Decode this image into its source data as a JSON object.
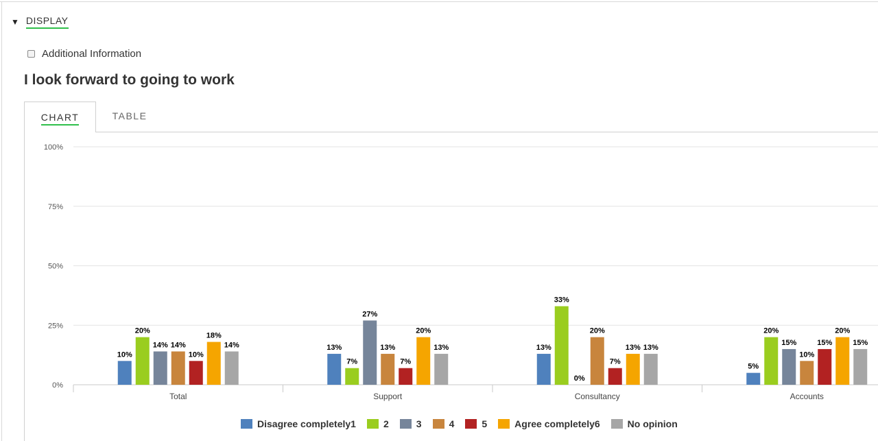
{
  "display": {
    "label": "DISPLAY",
    "caret": "▼"
  },
  "additional_info": {
    "label": "Additional Information",
    "checked": false
  },
  "question": "I look forward to going to work",
  "tabs": {
    "chart": "CHART",
    "table": "TABLE",
    "active": "chart"
  },
  "chart_data": {
    "type": "bar",
    "title": "I look forward to going to work",
    "categories": [
      "Total",
      "Support",
      "Consultancy",
      "Accounts"
    ],
    "ylim": [
      0,
      100
    ],
    "yticks": [
      "0%",
      "25%",
      "50%",
      "75%",
      "100%"
    ],
    "ytick_values": [
      0,
      25,
      50,
      75,
      100
    ],
    "grid": true,
    "legend_position": "bottom",
    "xlabel": "",
    "ylabel": "",
    "series": [
      {
        "name": "Disagree completely1",
        "color": "#4f81bd",
        "values": [
          10,
          13,
          13,
          5
        ],
        "labels": [
          "10%",
          "13%",
          "13%",
          "5%"
        ]
      },
      {
        "name": "2",
        "color": "#9acd1f",
        "values": [
          20,
          7,
          33,
          20
        ],
        "labels": [
          "20%",
          "7%",
          "33%",
          "20%"
        ]
      },
      {
        "name": "3",
        "color": "#76859a",
        "values": [
          14,
          27,
          0,
          15
        ],
        "labels": [
          "14%",
          "27%",
          "0%",
          "15%"
        ]
      },
      {
        "name": "4",
        "color": "#c8853d",
        "values": [
          14,
          13,
          20,
          10
        ],
        "labels": [
          "14%",
          "13%",
          "20%",
          "10%"
        ]
      },
      {
        "name": "5",
        "color": "#b22222",
        "values": [
          10,
          7,
          7,
          15
        ],
        "labels": [
          "10%",
          "7%",
          "7%",
          "15%"
        ]
      },
      {
        "name": "Agree completely6",
        "color": "#f5a500",
        "values": [
          18,
          20,
          13,
          20
        ],
        "labels": [
          "18%",
          "20%",
          "13%",
          "20%"
        ]
      },
      {
        "name": "No opinion",
        "color": "#a6a6a6",
        "values": [
          14,
          13,
          13,
          15
        ],
        "labels": [
          "14%",
          "13%",
          "13%",
          "15%"
        ]
      }
    ]
  }
}
